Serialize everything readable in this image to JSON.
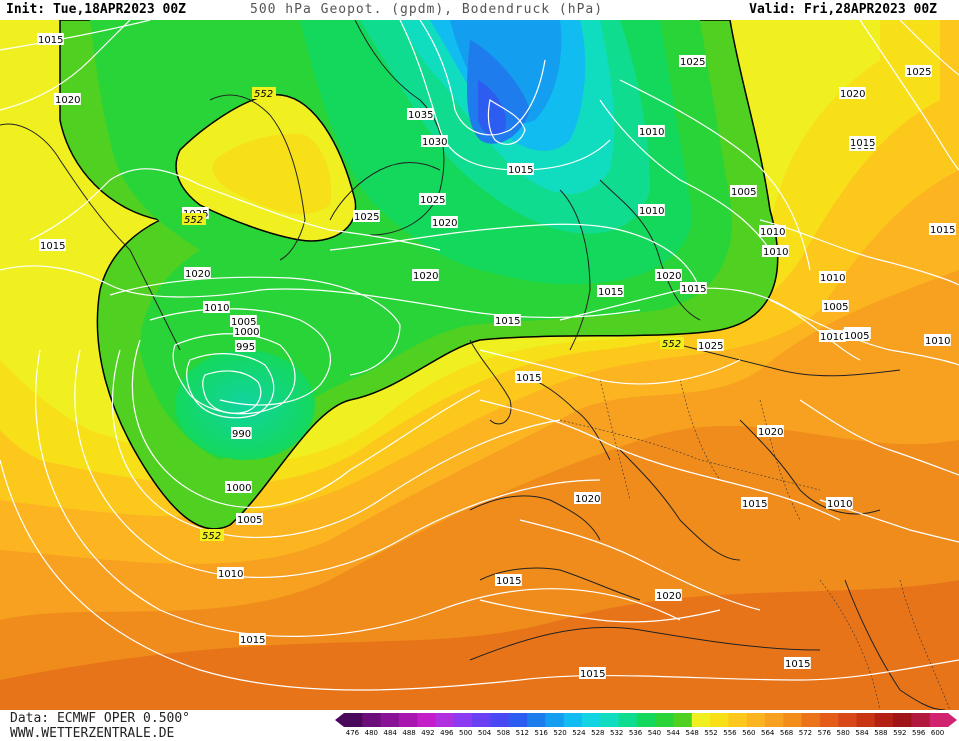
{
  "header": {
    "init": "Init: Tue,18APR2023 00Z",
    "title": "500 hPa Geopot. (gpdm), Bodendruck (hPa)",
    "valid": "Valid: Fri,28APR2023 00Z"
  },
  "footer": {
    "source": "Data: ECMWF OPER 0.500°",
    "website": "WWW.WETTERZENTRALE.DE"
  },
  "colorbar": {
    "labels": [
      "476",
      "480",
      "484",
      "488",
      "492",
      "496",
      "500",
      "504",
      "508",
      "512",
      "516",
      "520",
      "524",
      "528",
      "532",
      "536",
      "540",
      "544",
      "548",
      "552",
      "556",
      "560",
      "564",
      "568",
      "572",
      "576",
      "580",
      "584",
      "588",
      "592",
      "596",
      "600"
    ],
    "colors": [
      "#4a0a5c",
      "#6b0e7a",
      "#8a1296",
      "#a818b0",
      "#c41ec8",
      "#b030e0",
      "#8c3cf0",
      "#6a40f4",
      "#4a48f4",
      "#2c5cf0",
      "#1e7cec",
      "#149ef0",
      "#10bcf0",
      "#10d4e4",
      "#10dcc0",
      "#10dc90",
      "#14d85c",
      "#28d438",
      "#50d020",
      "#f0f020",
      "#f8e018",
      "#fcc81c",
      "#fcb420",
      "#f8a020",
      "#f48c1c",
      "#ec7418",
      "#e45c18",
      "#d84818",
      "#c83414",
      "#b42014",
      "#a01418",
      "#b0183c",
      "#d02470"
    ]
  },
  "map": {
    "contour_552_label": "552",
    "pressure_labels": [
      "1015",
      "1020",
      "1025",
      "1035",
      "1030",
      "1015",
      "1015",
      "1025",
      "1020",
      "1010",
      "1005",
      "1010",
      "1025",
      "1020",
      "1025",
      "1015",
      "1025",
      "1020",
      "1020",
      "1010",
      "1015",
      "1015",
      "1010",
      "1005",
      "1000",
      "995",
      "990",
      "1000",
      "1005",
      "1010",
      "1015",
      "1015",
      "1015",
      "1015",
      "1020",
      "1015",
      "1010",
      "1025",
      "1020",
      "1020",
      "1015",
      "1010",
      "1005",
      "1010",
      "1005",
      "1015",
      "1015",
      "1020",
      "1015",
      "1010",
      "1005",
      "1010",
      "1010"
    ]
  }
}
